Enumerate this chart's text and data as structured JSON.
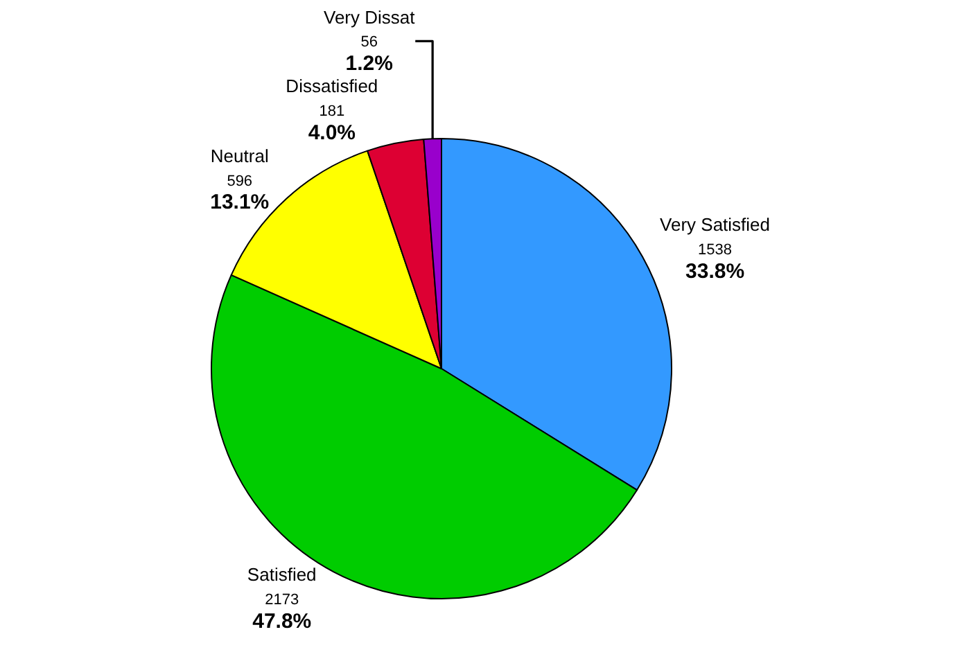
{
  "chart_data": {
    "type": "pie",
    "categories": [
      "Very Satisfied",
      "Satisfied",
      "Neutral",
      "Dissatisfied",
      "Very Dissat"
    ],
    "values": [
      1538,
      2173,
      596,
      181,
      56
    ],
    "colors": [
      "#3399ff",
      "#00cc00",
      "#ffff00",
      "#dd0033",
      "#9900cc"
    ],
    "value_labels": [
      "1538\n33.8%",
      "2173\n47.8%",
      "596\n13.1%",
      "181\n4.0%",
      "56\n1.2%"
    ],
    "legend": false
  }
}
